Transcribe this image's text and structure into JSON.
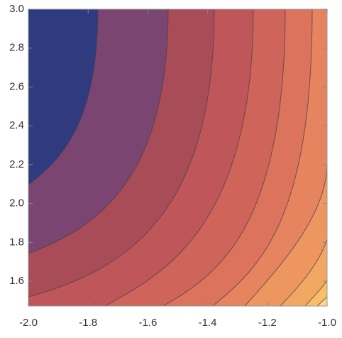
{
  "chart_data": {
    "type": "contour",
    "xlim": [
      -2.0,
      -1.0
    ],
    "ylim": [
      1.473,
      3.0
    ],
    "xticks": [
      {
        "value": -2.0,
        "label": "-2.0"
      },
      {
        "value": -1.8,
        "label": "-1.8"
      },
      {
        "value": -1.6,
        "label": "-1.6"
      },
      {
        "value": -1.4,
        "label": "-1.4"
      },
      {
        "value": -1.2,
        "label": "-1.2"
      },
      {
        "value": -1.0,
        "label": "-1.0"
      }
    ],
    "yticks": [
      {
        "value": 1.6,
        "label": "1.6"
      },
      {
        "value": 1.8,
        "label": "1.8"
      },
      {
        "value": 2.0,
        "label": "2.0"
      },
      {
        "value": 2.2,
        "label": "2.2"
      },
      {
        "value": 2.4,
        "label": "2.4"
      },
      {
        "value": 2.6,
        "label": "2.6"
      },
      {
        "value": 2.8,
        "label": "2.8"
      },
      {
        "value": 3.0,
        "label": "3.0"
      }
    ],
    "colors": [
      "#2f3b7e",
      "#7a4570",
      "#a84c58",
      "#bf575a",
      "#cf645a",
      "#dc735d",
      "#e6845f",
      "#ed9660",
      "#f2a862",
      "#f7c068",
      "#fcd98a",
      "#fde8b8"
    ]
  }
}
